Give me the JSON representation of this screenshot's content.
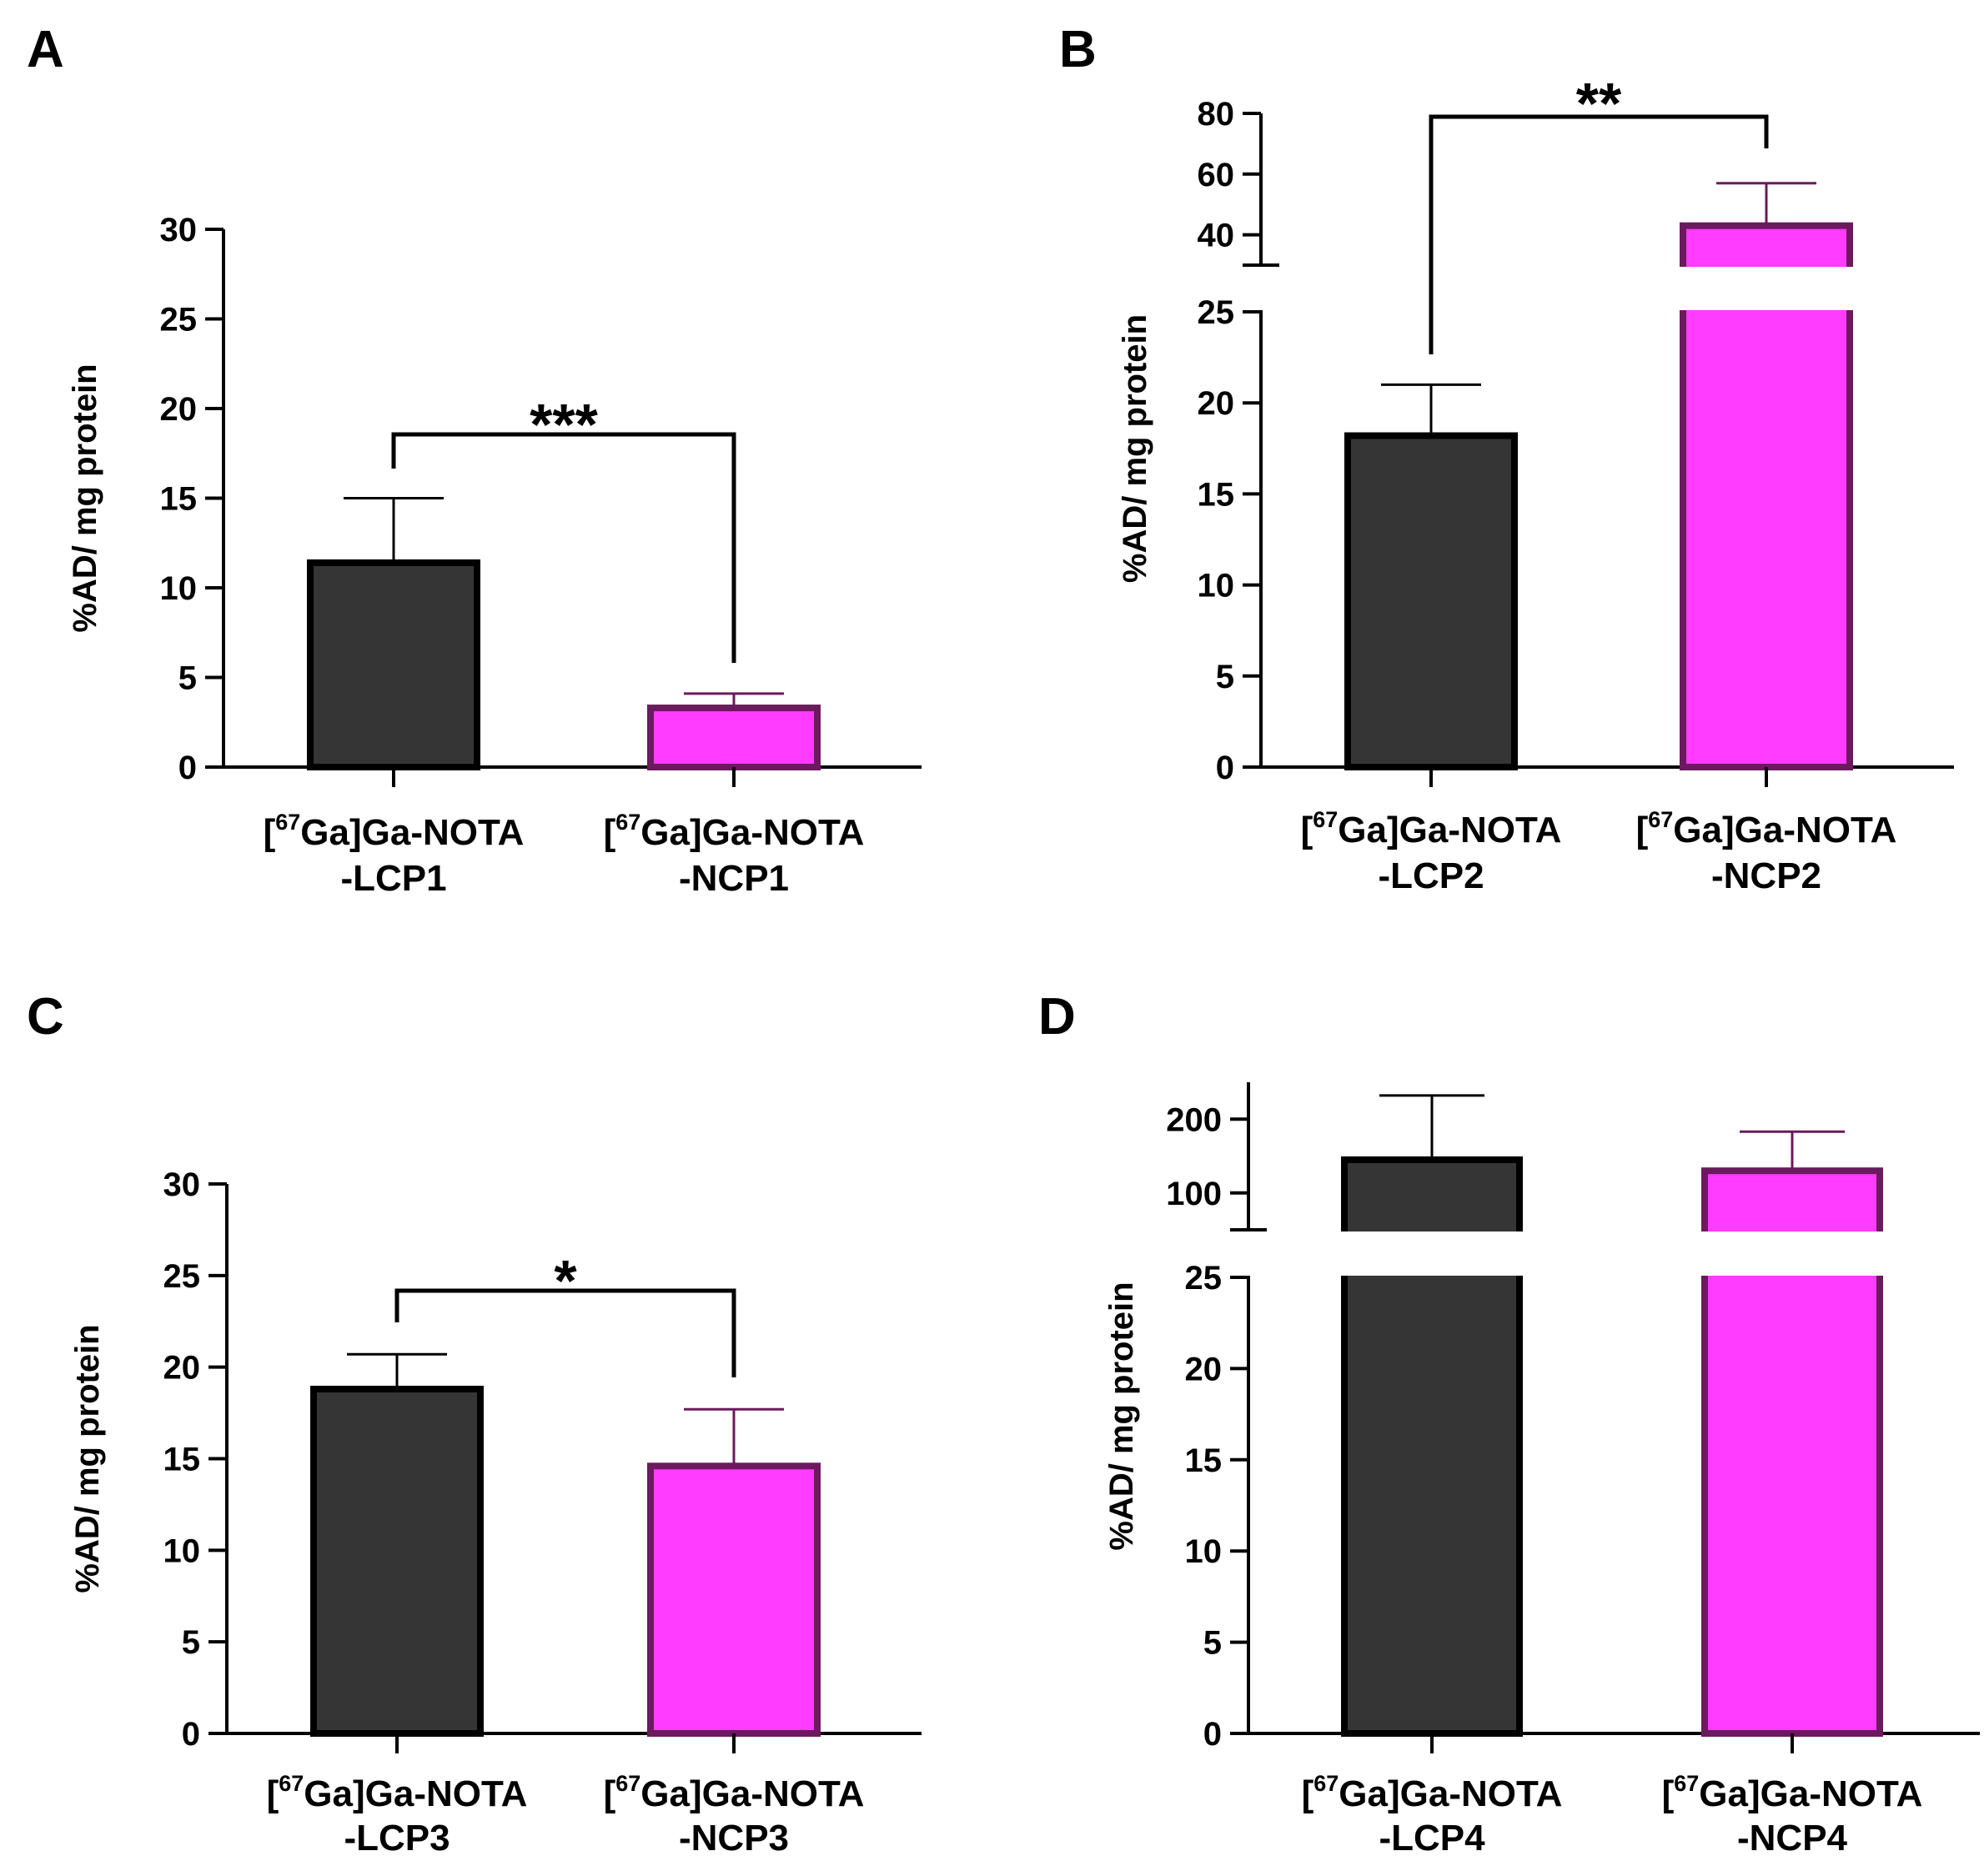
{
  "chart_data": [
    {
      "panel": "A",
      "type": "bar",
      "ylabel": "%AD/ mg protein",
      "ylim": [
        0,
        30
      ],
      "yticks": [
        "0",
        "5",
        "10",
        "15",
        "20",
        "25",
        "30"
      ],
      "categories": [
        {
          "pre": "[",
          "sup": "67",
          "post": "Ga]Ga-NOTA",
          "line2": "-LCP1"
        },
        {
          "pre": "[",
          "sup": "67",
          "post": "Ga]Ga-NOTA",
          "line2": "-NCP1"
        }
      ],
      "values": [
        11.4,
        3.3
      ],
      "errors": [
        3.6,
        0.8
      ],
      "colors": [
        "#353535",
        "#ff3cff"
      ],
      "edge_colors": [
        "#000000",
        "#6b1a5e"
      ],
      "significance": "***"
    },
    {
      "panel": "B",
      "type": "bar",
      "ylabel": "%AD/ mg protein",
      "axis_break": true,
      "ylim_lower": [
        0,
        25
      ],
      "ylim_upper": [
        30,
        80
      ],
      "yticks_lower": [
        "0",
        "5",
        "10",
        "15",
        "20",
        "25"
      ],
      "yticks_upper": [
        "40",
        "60",
        "80"
      ],
      "categories": [
        {
          "pre": "[",
          "sup": "67",
          "post": "Ga]Ga-NOTA",
          "line2": "-LCP2"
        },
        {
          "pre": "[",
          "sup": "67",
          "post": "Ga]Ga-NOTA",
          "line2": "-NCP2"
        }
      ],
      "values": [
        18.2,
        43
      ],
      "errors": [
        2.8,
        14
      ],
      "colors": [
        "#353535",
        "#ff3cff"
      ],
      "edge_colors": [
        "#000000",
        "#6b1a5e"
      ],
      "significance": "**"
    },
    {
      "panel": "C",
      "type": "bar",
      "ylabel": "%AD/ mg protein",
      "ylim": [
        0,
        30
      ],
      "yticks": [
        "0",
        "5",
        "10",
        "15",
        "20",
        "25",
        "30"
      ],
      "categories": [
        {
          "pre": "[",
          "sup": "67",
          "post": "Ga]Ga-NOTA",
          "line2": "-LCP3"
        },
        {
          "pre": "[",
          "sup": "67",
          "post": "Ga]Ga-NOTA",
          "line2": "-NCP3"
        }
      ],
      "values": [
        18.8,
        14.6
      ],
      "errors": [
        1.9,
        3.1
      ],
      "colors": [
        "#353535",
        "#ff3cff"
      ],
      "edge_colors": [
        "#000000",
        "#6b1a5e"
      ],
      "significance": "*"
    },
    {
      "panel": "D",
      "type": "bar",
      "ylabel": "%AD/ mg protein",
      "axis_break": true,
      "ylim_lower": [
        0,
        25
      ],
      "ylim_upper": [
        50,
        250
      ],
      "yticks_lower": [
        "0",
        "5",
        "10",
        "15",
        "20",
        "25"
      ],
      "yticks_upper": [
        "100",
        "200"
      ],
      "categories": [
        {
          "pre": "[",
          "sup": "67",
          "post": "Ga]Ga-NOTA",
          "line2": "-LCP4"
        },
        {
          "pre": "[",
          "sup": "67",
          "post": "Ga]Ga-NOTA",
          "line2": "-NCP4"
        }
      ],
      "values": [
        145,
        130
      ],
      "errors": [
        87,
        53
      ],
      "colors": [
        "#353535",
        "#ff3cff"
      ],
      "edge_colors": [
        "#000000",
        "#6b1a5e"
      ],
      "significance": ""
    }
  ]
}
